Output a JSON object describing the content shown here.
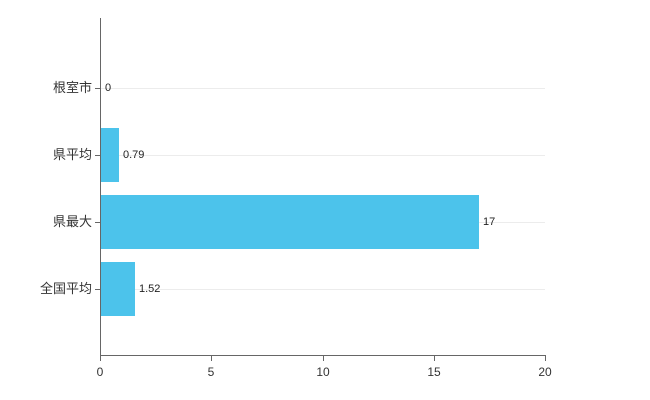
{
  "chart_data": {
    "type": "bar",
    "orientation": "horizontal",
    "title": "",
    "xlabel": "",
    "ylabel": "",
    "categories": [
      "根室市",
      "県平均",
      "県最大",
      "全国平均"
    ],
    "values": [
      0,
      0.79,
      17,
      1.52
    ],
    "value_labels": [
      "0",
      "0.79",
      "17",
      "1.52"
    ],
    "x_ticks": [
      0,
      5,
      10,
      15,
      20
    ],
    "x_tick_labels": [
      "0",
      "5",
      "10",
      "15",
      "20"
    ],
    "xlim": [
      0,
      20
    ],
    "grid": "horizontal-faint",
    "legend": "none",
    "bar_color": "#4cc3eb",
    "axis_color": "#666666",
    "grid_color": "#ececec",
    "text_color": "#333333"
  }
}
